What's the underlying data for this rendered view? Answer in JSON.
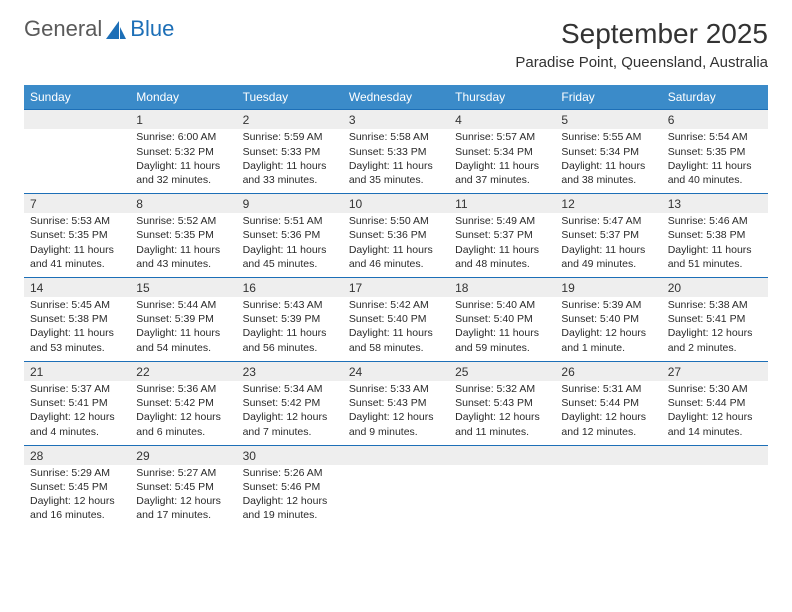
{
  "logo": {
    "word1": "General",
    "word2": "Blue"
  },
  "title": "September 2025",
  "location": "Paradise Point, Queensland, Australia",
  "colors": {
    "header_blue": "#3b8bc9",
    "row_grey": "#eeeeee",
    "divider": "#1d6fb7",
    "logo_blue": "#1d6fb7",
    "background": "#ffffff"
  },
  "typography": {
    "title_fontsize_pt": 21,
    "location_fontsize_pt": 11,
    "header_fontsize_pt": 9,
    "cell_fontsize_pt": 8,
    "font_family": "Arial"
  },
  "day_headers": [
    "Sunday",
    "Monday",
    "Tuesday",
    "Wednesday",
    "Thursday",
    "Friday",
    "Saturday"
  ],
  "weeks": [
    [
      null,
      {
        "n": "1",
        "sunrise": "Sunrise: 6:00 AM",
        "sunset": "Sunset: 5:32 PM",
        "dl1": "Daylight: 11 hours",
        "dl2": "and 32 minutes."
      },
      {
        "n": "2",
        "sunrise": "Sunrise: 5:59 AM",
        "sunset": "Sunset: 5:33 PM",
        "dl1": "Daylight: 11 hours",
        "dl2": "and 33 minutes."
      },
      {
        "n": "3",
        "sunrise": "Sunrise: 5:58 AM",
        "sunset": "Sunset: 5:33 PM",
        "dl1": "Daylight: 11 hours",
        "dl2": "and 35 minutes."
      },
      {
        "n": "4",
        "sunrise": "Sunrise: 5:57 AM",
        "sunset": "Sunset: 5:34 PM",
        "dl1": "Daylight: 11 hours",
        "dl2": "and 37 minutes."
      },
      {
        "n": "5",
        "sunrise": "Sunrise: 5:55 AM",
        "sunset": "Sunset: 5:34 PM",
        "dl1": "Daylight: 11 hours",
        "dl2": "and 38 minutes."
      },
      {
        "n": "6",
        "sunrise": "Sunrise: 5:54 AM",
        "sunset": "Sunset: 5:35 PM",
        "dl1": "Daylight: 11 hours",
        "dl2": "and 40 minutes."
      }
    ],
    [
      {
        "n": "7",
        "sunrise": "Sunrise: 5:53 AM",
        "sunset": "Sunset: 5:35 PM",
        "dl1": "Daylight: 11 hours",
        "dl2": "and 41 minutes."
      },
      {
        "n": "8",
        "sunrise": "Sunrise: 5:52 AM",
        "sunset": "Sunset: 5:35 PM",
        "dl1": "Daylight: 11 hours",
        "dl2": "and 43 minutes."
      },
      {
        "n": "9",
        "sunrise": "Sunrise: 5:51 AM",
        "sunset": "Sunset: 5:36 PM",
        "dl1": "Daylight: 11 hours",
        "dl2": "and 45 minutes."
      },
      {
        "n": "10",
        "sunrise": "Sunrise: 5:50 AM",
        "sunset": "Sunset: 5:36 PM",
        "dl1": "Daylight: 11 hours",
        "dl2": "and 46 minutes."
      },
      {
        "n": "11",
        "sunrise": "Sunrise: 5:49 AM",
        "sunset": "Sunset: 5:37 PM",
        "dl1": "Daylight: 11 hours",
        "dl2": "and 48 minutes."
      },
      {
        "n": "12",
        "sunrise": "Sunrise: 5:47 AM",
        "sunset": "Sunset: 5:37 PM",
        "dl1": "Daylight: 11 hours",
        "dl2": "and 49 minutes."
      },
      {
        "n": "13",
        "sunrise": "Sunrise: 5:46 AM",
        "sunset": "Sunset: 5:38 PM",
        "dl1": "Daylight: 11 hours",
        "dl2": "and 51 minutes."
      }
    ],
    [
      {
        "n": "14",
        "sunrise": "Sunrise: 5:45 AM",
        "sunset": "Sunset: 5:38 PM",
        "dl1": "Daylight: 11 hours",
        "dl2": "and 53 minutes."
      },
      {
        "n": "15",
        "sunrise": "Sunrise: 5:44 AM",
        "sunset": "Sunset: 5:39 PM",
        "dl1": "Daylight: 11 hours",
        "dl2": "and 54 minutes."
      },
      {
        "n": "16",
        "sunrise": "Sunrise: 5:43 AM",
        "sunset": "Sunset: 5:39 PM",
        "dl1": "Daylight: 11 hours",
        "dl2": "and 56 minutes."
      },
      {
        "n": "17",
        "sunrise": "Sunrise: 5:42 AM",
        "sunset": "Sunset: 5:40 PM",
        "dl1": "Daylight: 11 hours",
        "dl2": "and 58 minutes."
      },
      {
        "n": "18",
        "sunrise": "Sunrise: 5:40 AM",
        "sunset": "Sunset: 5:40 PM",
        "dl1": "Daylight: 11 hours",
        "dl2": "and 59 minutes."
      },
      {
        "n": "19",
        "sunrise": "Sunrise: 5:39 AM",
        "sunset": "Sunset: 5:40 PM",
        "dl1": "Daylight: 12 hours",
        "dl2": "and 1 minute."
      },
      {
        "n": "20",
        "sunrise": "Sunrise: 5:38 AM",
        "sunset": "Sunset: 5:41 PM",
        "dl1": "Daylight: 12 hours",
        "dl2": "and 2 minutes."
      }
    ],
    [
      {
        "n": "21",
        "sunrise": "Sunrise: 5:37 AM",
        "sunset": "Sunset: 5:41 PM",
        "dl1": "Daylight: 12 hours",
        "dl2": "and 4 minutes."
      },
      {
        "n": "22",
        "sunrise": "Sunrise: 5:36 AM",
        "sunset": "Sunset: 5:42 PM",
        "dl1": "Daylight: 12 hours",
        "dl2": "and 6 minutes."
      },
      {
        "n": "23",
        "sunrise": "Sunrise: 5:34 AM",
        "sunset": "Sunset: 5:42 PM",
        "dl1": "Daylight: 12 hours",
        "dl2": "and 7 minutes."
      },
      {
        "n": "24",
        "sunrise": "Sunrise: 5:33 AM",
        "sunset": "Sunset: 5:43 PM",
        "dl1": "Daylight: 12 hours",
        "dl2": "and 9 minutes."
      },
      {
        "n": "25",
        "sunrise": "Sunrise: 5:32 AM",
        "sunset": "Sunset: 5:43 PM",
        "dl1": "Daylight: 12 hours",
        "dl2": "and 11 minutes."
      },
      {
        "n": "26",
        "sunrise": "Sunrise: 5:31 AM",
        "sunset": "Sunset: 5:44 PM",
        "dl1": "Daylight: 12 hours",
        "dl2": "and 12 minutes."
      },
      {
        "n": "27",
        "sunrise": "Sunrise: 5:30 AM",
        "sunset": "Sunset: 5:44 PM",
        "dl1": "Daylight: 12 hours",
        "dl2": "and 14 minutes."
      }
    ],
    [
      {
        "n": "28",
        "sunrise": "Sunrise: 5:29 AM",
        "sunset": "Sunset: 5:45 PM",
        "dl1": "Daylight: 12 hours",
        "dl2": "and 16 minutes."
      },
      {
        "n": "29",
        "sunrise": "Sunrise: 5:27 AM",
        "sunset": "Sunset: 5:45 PM",
        "dl1": "Daylight: 12 hours",
        "dl2": "and 17 minutes."
      },
      {
        "n": "30",
        "sunrise": "Sunrise: 5:26 AM",
        "sunset": "Sunset: 5:46 PM",
        "dl1": "Daylight: 12 hours",
        "dl2": "and 19 minutes."
      },
      null,
      null,
      null,
      null
    ]
  ]
}
